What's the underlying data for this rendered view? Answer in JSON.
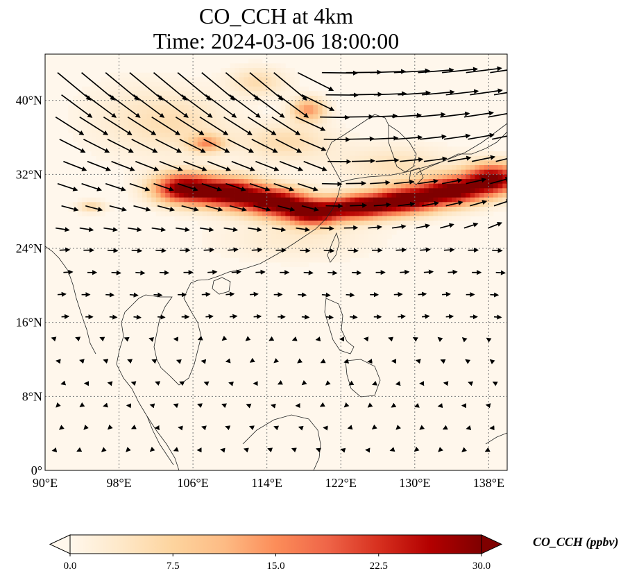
{
  "title": {
    "line1": "CO_CCH at 4km",
    "line2": "Time: 2024-03-06 18:00:00"
  },
  "colorbar": {
    "label": "CO_CCH (ppbv)",
    "ticks": [
      "0.0",
      "7.5",
      "15.0",
      "22.5",
      "30.0"
    ],
    "min": 0,
    "max": 30,
    "colors": [
      "#fff7ec",
      "#fee8c8",
      "#fdd49e",
      "#fdbb84",
      "#fc8d59",
      "#ef6548",
      "#d7301f",
      "#b30000",
      "#7f0000"
    ]
  },
  "chart_data": {
    "type": "heatmap",
    "variable": "CO_CCH",
    "units": "ppbv",
    "title": "CO_CCH at 4km",
    "subtitle": "Time: 2024-03-06 18:00:00",
    "lon_range": [
      90,
      140
    ],
    "lat_range": [
      0,
      45
    ],
    "x_ticks": [
      {
        "value": 90,
        "label": "90°E"
      },
      {
        "value": 98,
        "label": "98°E"
      },
      {
        "value": 106,
        "label": "106°E"
      },
      {
        "value": 114,
        "label": "114°E"
      },
      {
        "value": 122,
        "label": "122°E"
      },
      {
        "value": 130,
        "label": "130°E"
      },
      {
        "value": 138,
        "label": "138°E"
      }
    ],
    "y_ticks": [
      {
        "value": 0,
        "label": "0°"
      },
      {
        "value": 8,
        "label": "8°N"
      },
      {
        "value": 16,
        "label": "16°N"
      },
      {
        "value": 24,
        "label": "24°N"
      },
      {
        "value": 32,
        "label": "32°N"
      },
      {
        "value": 40,
        "label": "40°N"
      }
    ],
    "colorbar_range": [
      0,
      30
    ],
    "plumes": [
      {
        "lon": 105,
        "lat": 30.5,
        "sx": 3.2,
        "sy": 1.6,
        "v": 30
      },
      {
        "lon": 110,
        "lat": 30.0,
        "sx": 3.5,
        "sy": 1.6,
        "v": 30
      },
      {
        "lon": 115,
        "lat": 29.0,
        "sx": 3.5,
        "sy": 1.5,
        "v": 30
      },
      {
        "lon": 119,
        "lat": 27.8,
        "sx": 3.0,
        "sy": 1.3,
        "v": 28
      },
      {
        "lon": 124,
        "lat": 28.5,
        "sx": 3.5,
        "sy": 1.3,
        "v": 30
      },
      {
        "lon": 129,
        "lat": 29.2,
        "sx": 3.5,
        "sy": 1.4,
        "v": 30
      },
      {
        "lon": 134,
        "lat": 30.2,
        "sx": 3.5,
        "sy": 1.5,
        "v": 30
      },
      {
        "lon": 138.5,
        "lat": 31.5,
        "sx": 3.0,
        "sy": 1.6,
        "v": 30
      },
      {
        "lon": 118.5,
        "lat": 39.0,
        "sx": 1.8,
        "sy": 1.2,
        "v": 14
      },
      {
        "lon": 107.5,
        "lat": 35.3,
        "sx": 1.8,
        "sy": 0.9,
        "v": 13
      },
      {
        "lon": 116,
        "lat": 35.5,
        "sx": 5.0,
        "sy": 2.0,
        "v": 6
      },
      {
        "lon": 105,
        "lat": 37.5,
        "sx": 5.0,
        "sy": 3.0,
        "v": 4
      },
      {
        "lon": 113,
        "lat": 42.0,
        "sx": 3.0,
        "sy": 1.5,
        "v": 6
      },
      {
        "lon": 128,
        "lat": 33.0,
        "sx": 6.0,
        "sy": 2.0,
        "v": 5
      },
      {
        "lon": 95,
        "lat": 28.5,
        "sx": 1.5,
        "sy": 0.6,
        "v": 7
      },
      {
        "lon": 117,
        "lat": 25.0,
        "sx": 8.0,
        "sy": 2.2,
        "v": 3
      },
      {
        "lon": 100,
        "lat": 38.0,
        "sx": 6.0,
        "sy": 4.0,
        "v": 3
      }
    ]
  }
}
